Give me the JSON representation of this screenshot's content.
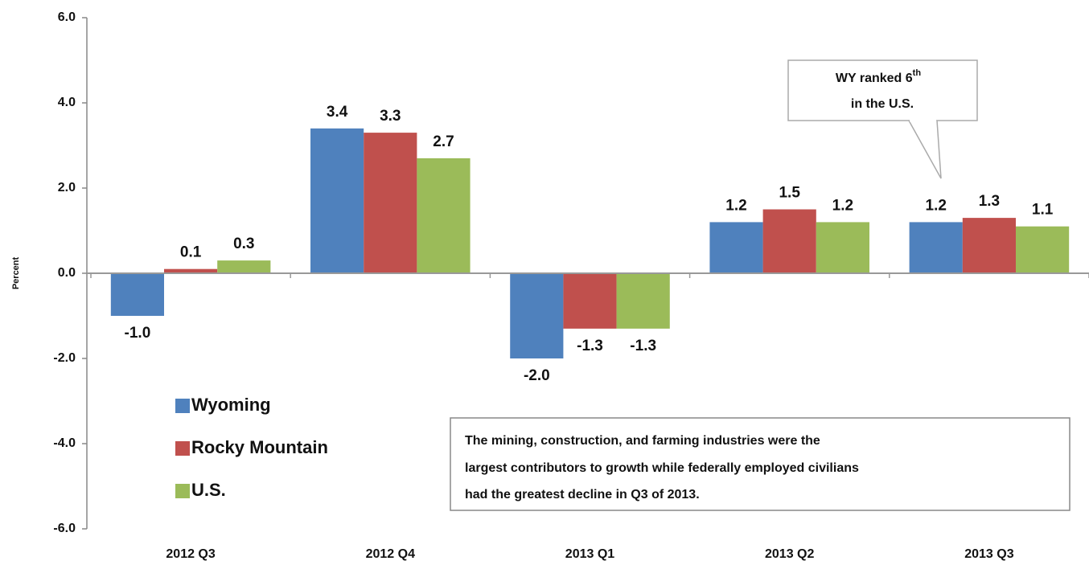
{
  "chart_data": {
    "type": "bar",
    "y_label": "Percent",
    "categories": [
      "2012 Q3",
      "2012 Q4",
      "2013 Q1",
      "2013 Q2",
      "2013 Q3"
    ],
    "series": [
      {
        "name": "Wyoming",
        "color": "#4f81bd",
        "values": [
          -1.0,
          3.4,
          -2.0,
          1.2,
          1.2
        ],
        "value_labels": [
          "-1.0",
          "3.4",
          "-2.0",
          "1.2",
          "1.2"
        ]
      },
      {
        "name": "Rocky Mountain",
        "color": "#c0504d",
        "values": [
          0.1,
          3.3,
          -1.3,
          1.5,
          1.3
        ],
        "value_labels": [
          "0.1",
          "3.3",
          "-1.3",
          "1.5",
          "1.3"
        ]
      },
      {
        "name": "U.S.",
        "color": "#9bbb59",
        "values": [
          0.3,
          2.7,
          -1.3,
          1.2,
          1.1
        ],
        "value_labels": [
          "0.3",
          "2.7",
          "-1.3",
          "1.2",
          "1.1"
        ]
      }
    ],
    "ylim": [
      -6,
      6
    ],
    "yticks": [
      {
        "value": -6,
        "label": "-6.0"
      },
      {
        "value": -4,
        "label": "-4.0"
      },
      {
        "value": -2,
        "label": "-2.0"
      },
      {
        "value": 0,
        "label": "0.0"
      },
      {
        "value": 2,
        "label": "2.0"
      },
      {
        "value": 4,
        "label": "4.0"
      },
      {
        "value": 6,
        "label": "6.0"
      }
    ],
    "grid": false,
    "legend": "lower left",
    "callout": {
      "text": "WY ranked 6",
      "superscript": "th",
      "line2": "in the U.S."
    },
    "note": [
      "The mining, construction, and farming industries were the",
      "largest contributors to growth while federally employed civilians",
      "had the greatest decline in Q3 of 2013."
    ]
  }
}
